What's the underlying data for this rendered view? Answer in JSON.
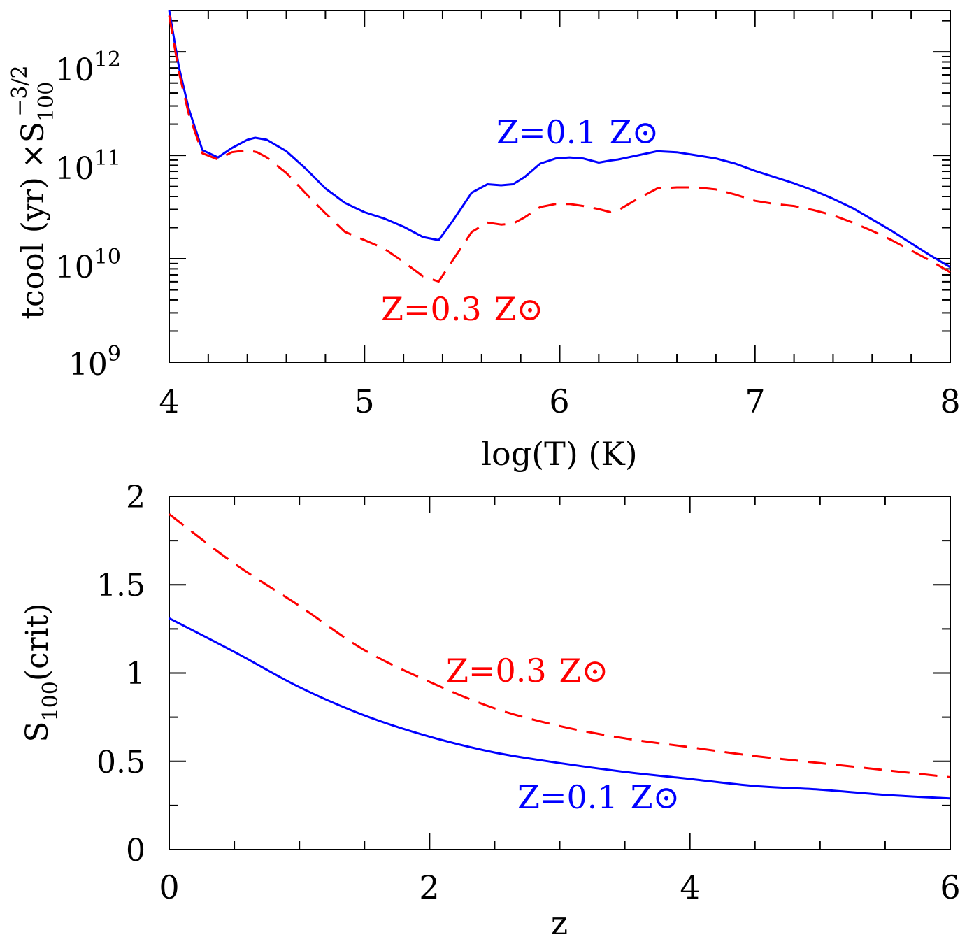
{
  "chart_data": [
    {
      "type": "line",
      "panel": "top",
      "ylabel_main": "tcool (yr)",
      "ylabel_factor": "×S",
      "ylabel_sub": "100",
      "ylabel_sup": "−3/2",
      "xlabel": "log(T) (K)",
      "xlim": [
        4,
        8
      ],
      "ylim_log10": [
        9,
        12.4
      ],
      "yscale": "log",
      "x_ticks": [
        "4",
        "5",
        "6",
        "7",
        "8"
      ],
      "y_ticks": [
        {
          "base": "10",
          "exp": "12"
        },
        {
          "base": "10",
          "exp": "11"
        },
        {
          "base": "10",
          "exp": "10"
        },
        {
          "base": "10",
          "exp": "9"
        }
      ],
      "series": [
        {
          "name": "Z=0.1 Z⊙",
          "color": "#0000ff",
          "dash": "solid",
          "x": [
            4.0,
            4.05,
            4.1,
            4.17,
            4.25,
            4.32,
            4.4,
            4.44,
            4.5,
            4.6,
            4.7,
            4.8,
            4.9,
            5.0,
            5.1,
            5.2,
            5.3,
            5.38,
            5.45,
            5.55,
            5.63,
            5.7,
            5.76,
            5.82,
            5.9,
            5.98,
            6.05,
            6.12,
            6.2,
            6.26,
            6.3,
            6.4,
            6.5,
            6.6,
            6.7,
            6.8,
            6.9,
            7.0,
            7.1,
            7.2,
            7.3,
            7.4,
            7.5,
            7.6,
            7.7,
            7.8,
            7.9,
            8.0
          ],
          "y_log10": [
            12.4,
            11.85,
            11.45,
            11.05,
            10.98,
            11.07,
            11.15,
            11.17,
            11.15,
            11.04,
            10.87,
            10.68,
            10.54,
            10.45,
            10.39,
            10.31,
            10.21,
            10.18,
            10.36,
            10.64,
            10.72,
            10.71,
            10.72,
            10.79,
            10.92,
            10.97,
            10.98,
            10.97,
            10.93,
            10.95,
            10.96,
            11.0,
            11.04,
            11.03,
            11.0,
            10.97,
            10.92,
            10.85,
            10.79,
            10.73,
            10.66,
            10.58,
            10.49,
            10.38,
            10.27,
            10.15,
            10.03,
            9.92
          ]
        },
        {
          "name": "Z=0.3 Z⊙",
          "color": "#ff0000",
          "dash": "dashed",
          "x": [
            4.0,
            4.05,
            4.1,
            4.17,
            4.25,
            4.32,
            4.4,
            4.45,
            4.5,
            4.6,
            4.7,
            4.8,
            4.9,
            5.0,
            5.1,
            5.2,
            5.3,
            5.38,
            5.45,
            5.55,
            5.63,
            5.7,
            5.76,
            5.82,
            5.9,
            5.98,
            6.05,
            6.12,
            6.2,
            6.26,
            6.3,
            6.4,
            6.5,
            6.6,
            6.7,
            6.8,
            6.9,
            7.0,
            7.1,
            7.2,
            7.3,
            7.4,
            7.5,
            7.6,
            7.7,
            7.8,
            7.9,
            8.0
          ],
          "y_log10": [
            12.35,
            11.8,
            11.4,
            11.02,
            10.96,
            11.03,
            11.05,
            11.03,
            10.98,
            10.83,
            10.63,
            10.44,
            10.26,
            10.18,
            10.1,
            9.97,
            9.83,
            9.78,
            9.98,
            10.26,
            10.35,
            10.33,
            10.34,
            10.4,
            10.5,
            10.53,
            10.53,
            10.51,
            10.48,
            10.45,
            10.47,
            10.58,
            10.68,
            10.69,
            10.69,
            10.67,
            10.62,
            10.56,
            10.53,
            10.51,
            10.47,
            10.42,
            10.35,
            10.27,
            10.18,
            10.08,
            9.98,
            9.87
          ]
        }
      ],
      "annotations": [
        {
          "text": "Z=0.1",
          "symbol": "Z⊙",
          "color": "#0000ff",
          "series": "Z=0.1 Z⊙"
        },
        {
          "text": "Z=0.3",
          "symbol": "Z⊙",
          "color": "#ff0000",
          "series": "Z=0.3 Z⊙"
        }
      ]
    },
    {
      "type": "line",
      "panel": "bottom",
      "ylabel_main": "S",
      "ylabel_sub": "100",
      "ylabel_rest": "(crit)",
      "xlabel": "z",
      "xlim": [
        0,
        6
      ],
      "ylim": [
        0,
        2
      ],
      "x_ticks": [
        "0",
        "2",
        "4",
        "6"
      ],
      "y_ticks": [
        "0",
        "0.5",
        "1",
        "1.5",
        "2"
      ],
      "series": [
        {
          "name": "Z=0.3 Z⊙",
          "color": "#ff0000",
          "dash": "dashed",
          "x": [
            0,
            0.5,
            1,
            1.5,
            2,
            2.5,
            3,
            3.5,
            4,
            4.5,
            5,
            5.5,
            6
          ],
          "y": [
            1.9,
            1.62,
            1.38,
            1.13,
            0.95,
            0.8,
            0.7,
            0.63,
            0.58,
            0.53,
            0.49,
            0.45,
            0.41
          ]
        },
        {
          "name": "Z=0.1 Z⊙",
          "color": "#0000ff",
          "dash": "solid",
          "x": [
            0,
            0.5,
            1,
            1.5,
            2,
            2.5,
            3,
            3.5,
            4,
            4.5,
            5,
            5.5,
            6
          ],
          "y": [
            1.31,
            1.12,
            0.92,
            0.76,
            0.64,
            0.55,
            0.49,
            0.44,
            0.4,
            0.36,
            0.34,
            0.31,
            0.29
          ]
        }
      ],
      "annotations": [
        {
          "text": "Z=0.3",
          "symbol": "Z⊙",
          "color": "#ff0000",
          "series": "Z=0.3 Z⊙"
        },
        {
          "text": "Z=0.1",
          "symbol": "Z⊙",
          "color": "#0000ff",
          "series": "Z=0.1 Z⊙"
        }
      ]
    }
  ]
}
